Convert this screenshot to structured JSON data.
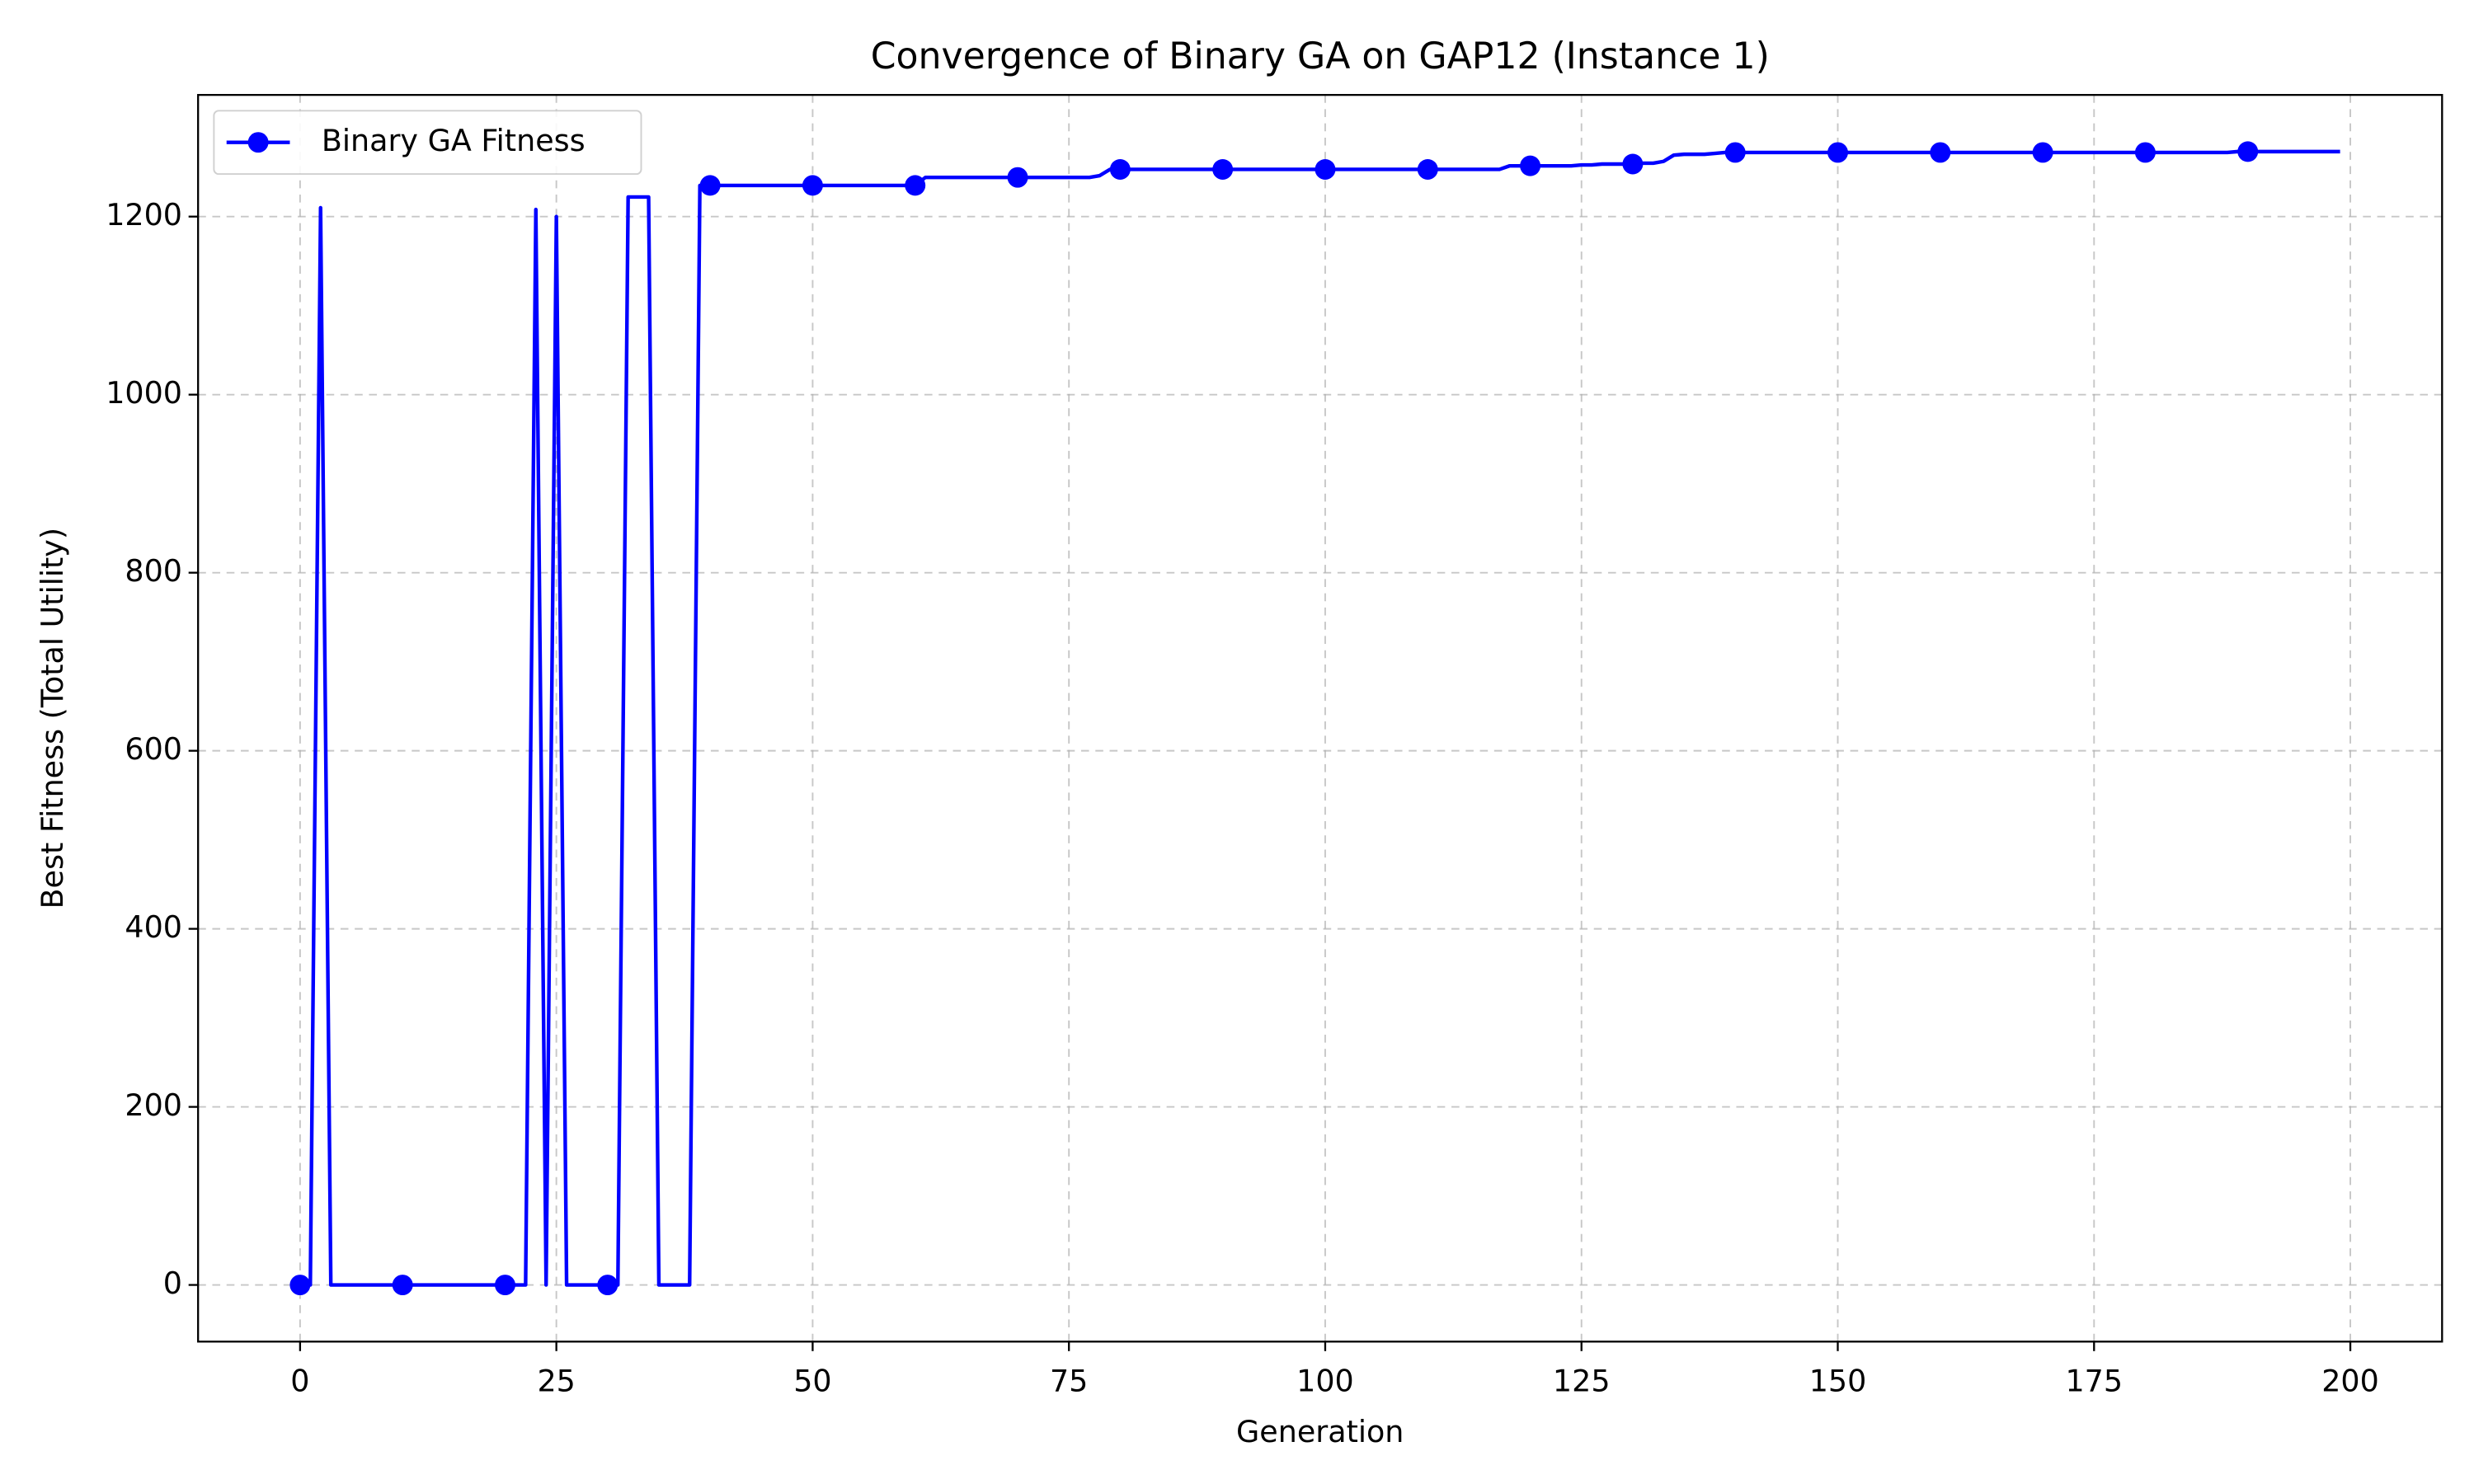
{
  "chart_data": {
    "type": "line",
    "title": "Convergence of Binary GA on GAP12 (Instance 1)",
    "x_label": "Generation",
    "y_label": "Best Fitness (Total Utility)",
    "x": [
      0,
      1,
      2,
      3,
      4,
      5,
      6,
      7,
      8,
      9,
      10,
      11,
      12,
      13,
      14,
      15,
      16,
      17,
      18,
      19,
      20,
      21,
      22,
      23,
      24,
      25,
      26,
      27,
      28,
      29,
      30,
      31,
      32,
      33,
      34,
      35,
      36,
      37,
      38,
      39,
      40,
      41,
      42,
      43,
      44,
      45,
      46,
      47,
      48,
      49,
      50,
      51,
      52,
      53,
      54,
      55,
      56,
      57,
      58,
      59,
      60,
      61,
      62,
      63,
      64,
      65,
      66,
      67,
      68,
      69,
      70,
      71,
      72,
      73,
      74,
      75,
      76,
      77,
      78,
      79,
      80,
      81,
      82,
      83,
      84,
      85,
      86,
      87,
      88,
      89,
      90,
      91,
      92,
      93,
      94,
      95,
      96,
      97,
      98,
      99,
      100,
      101,
      102,
      103,
      104,
      105,
      106,
      107,
      108,
      109,
      110,
      111,
      112,
      113,
      114,
      115,
      116,
      117,
      118,
      119,
      120,
      121,
      122,
      123,
      124,
      125,
      126,
      127,
      128,
      129,
      130,
      131,
      132,
      133,
      134,
      135,
      136,
      137,
      138,
      139,
      140,
      141,
      142,
      143,
      144,
      145,
      146,
      147,
      148,
      149,
      150,
      151,
      152,
      153,
      154,
      155,
      156,
      157,
      158,
      159,
      160,
      161,
      162,
      163,
      164,
      165,
      166,
      167,
      168,
      169,
      170,
      171,
      172,
      173,
      174,
      175,
      176,
      177,
      178,
      179,
      180,
      181,
      182,
      183,
      184,
      185,
      186,
      187,
      188,
      189,
      190,
      191,
      192,
      193,
      194,
      195,
      196,
      197,
      198,
      199
    ],
    "series": [
      {
        "name": "Binary GA Fitness",
        "color": "#0000ff",
        "values": [
          0,
          0,
          1210,
          0,
          0,
          0,
          0,
          0,
          0,
          0,
          0,
          0,
          0,
          0,
          0,
          0,
          0,
          0,
          0,
          0,
          0,
          0,
          0,
          1208,
          0,
          1200,
          0,
          0,
          0,
          0,
          0,
          0,
          1222,
          1222,
          1222,
          0,
          0,
          0,
          0,
          1235,
          1235,
          1235,
          1235,
          1235,
          1235,
          1235,
          1235,
          1235,
          1235,
          1235,
          1235,
          1235,
          1235,
          1235,
          1235,
          1235,
          1235,
          1235,
          1235,
          1235,
          1235,
          1244,
          1244,
          1244,
          1244,
          1244,
          1244,
          1244,
          1244,
          1244,
          1244,
          1244,
          1244,
          1244,
          1244,
          1244,
          1244,
          1244,
          1246,
          1253,
          1253,
          1253,
          1253,
          1253,
          1253,
          1253,
          1253,
          1253,
          1253,
          1253,
          1253,
          1253,
          1253,
          1253,
          1253,
          1253,
          1253,
          1253,
          1253,
          1253,
          1253,
          1253,
          1253,
          1253,
          1253,
          1253,
          1253,
          1253,
          1253,
          1253,
          1253,
          1253,
          1253,
          1253,
          1253,
          1253,
          1253,
          1253,
          1257,
          1257,
          1257,
          1257,
          1257,
          1257,
          1257,
          1258,
          1258,
          1259,
          1259,
          1259,
          1259,
          1260,
          1260,
          1262,
          1269,
          1270,
          1270,
          1270,
          1271,
          1272,
          1272,
          1272,
          1272,
          1272,
          1272,
          1272,
          1272,
          1272,
          1272,
          1272,
          1272,
          1272,
          1272,
          1272,
          1272,
          1272,
          1272,
          1272,
          1272,
          1272,
          1272,
          1272,
          1272,
          1272,
          1272,
          1272,
          1272,
          1272,
          1272,
          1272,
          1272,
          1272,
          1272,
          1272,
          1272,
          1272,
          1272,
          1272,
          1272,
          1272,
          1272,
          1272,
          1272,
          1272,
          1272,
          1272,
          1272,
          1272,
          1272,
          1273,
          1273,
          1273,
          1273,
          1273,
          1273,
          1273,
          1273,
          1273,
          1273,
          1273
        ]
      }
    ],
    "marker_every": 10,
    "xlim": [
      -9.95,
      208.95
    ],
    "xticks": [
      0,
      25,
      50,
      75,
      100,
      125,
      150,
      175,
      200
    ],
    "ylim": [
      -63.65,
      1336.65
    ],
    "yticks": [
      0,
      200,
      400,
      600,
      800,
      1000,
      1200
    ],
    "grid": true,
    "legend": "upper left"
  }
}
